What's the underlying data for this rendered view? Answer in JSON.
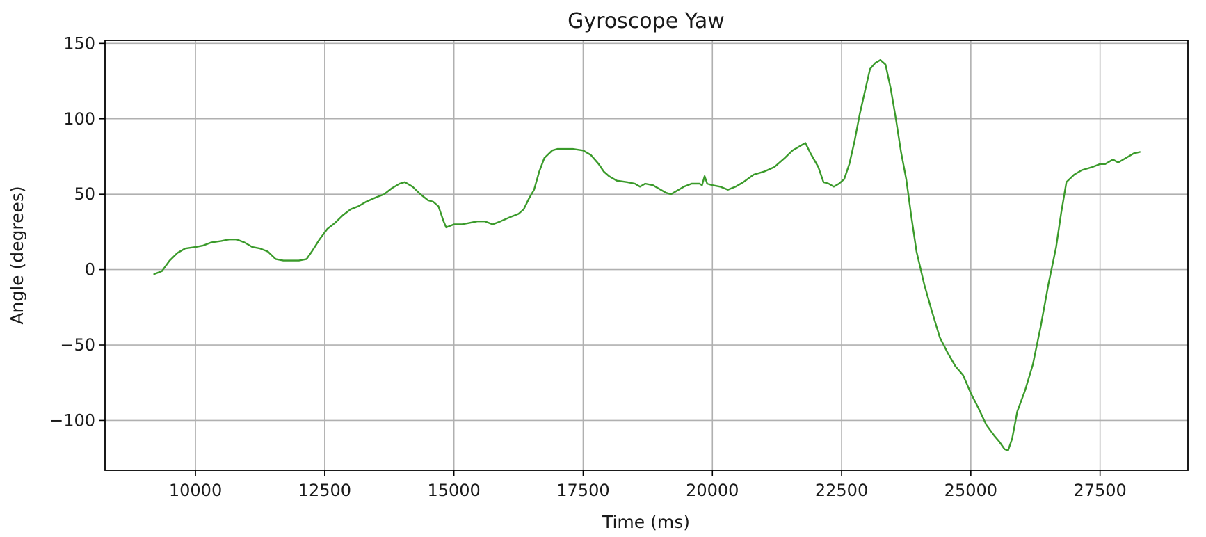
{
  "chart_data": {
    "type": "line",
    "title": "Gyroscope Yaw",
    "xlabel": "Time (ms)",
    "ylabel": "Angle (degrees)",
    "xlim": [
      8250,
      29200
    ],
    "ylim": [
      -133,
      152
    ],
    "x_ticks": [
      10000,
      12500,
      15000,
      17500,
      20000,
      22500,
      25000,
      27500
    ],
    "x_tick_labels": [
      "10000",
      "12500",
      "15000",
      "17500",
      "20000",
      "22500",
      "25000",
      "27500"
    ],
    "y_ticks": [
      150,
      100,
      50,
      0,
      -50,
      -100
    ],
    "y_tick_labels": [
      "150",
      "100",
      "50",
      "0",
      "−50",
      "−100"
    ],
    "grid": true,
    "line_color": "#3a9a2a",
    "series": [
      {
        "x": [
          9200,
          9350,
          9500,
          9650,
          9800,
          10000,
          10150,
          10300,
          10500,
          10650,
          10800,
          10950,
          11100,
          11250,
          11400,
          11550,
          11700,
          11850,
          12000,
          12150,
          12250,
          12400,
          12550,
          12700,
          12850,
          13000,
          13150,
          13300,
          13500,
          13650,
          13800,
          13950,
          14050,
          14200,
          14350,
          14500,
          14600,
          14700,
          14800,
          14850,
          15000,
          15150,
          15300,
          15450,
          15600,
          15750,
          15900,
          16100,
          16250,
          16350,
          16450,
          16550,
          16650,
          16750,
          16900,
          17000,
          17150,
          17300,
          17500,
          17650,
          17800,
          17900,
          18000,
          18150,
          18350,
          18500,
          18600,
          18700,
          18850,
          19000,
          19100,
          19200,
          19300,
          19450,
          19600,
          19750,
          19800,
          19850,
          19900,
          20000,
          20150,
          20300,
          20450,
          20600,
          20800,
          21000,
          21200,
          21400,
          21550,
          21700,
          21800,
          21900,
          22050,
          22150,
          22250,
          22350,
          22450,
          22550,
          22650,
          22750,
          22850,
          22950,
          23050,
          23150,
          23250,
          23350,
          23450,
          23550,
          23650,
          23750,
          23850,
          23950,
          24100,
          24250,
          24400,
          24550,
          24700,
          24850,
          25000,
          25150,
          25300,
          25450,
          25550,
          25650,
          25720,
          25800,
          25900,
          26050,
          26200,
          26350,
          26500,
          26650,
          26750,
          26850,
          27000,
          27150,
          27350,
          27500,
          27600,
          27750,
          27850,
          28000,
          28150,
          28270
        ],
        "y": [
          -3,
          -1,
          6,
          11,
          14,
          15,
          16,
          18,
          19,
          20,
          20,
          18,
          15,
          14,
          12,
          7,
          6,
          6,
          6,
          7,
          12,
          20,
          27,
          31,
          36,
          40,
          42,
          45,
          48,
          50,
          54,
          57,
          58,
          55,
          50,
          46,
          45,
          42,
          32,
          28,
          30,
          30,
          31,
          32,
          32,
          30,
          32,
          35,
          37,
          40,
          47,
          53,
          65,
          74,
          79,
          80,
          80,
          80,
          79,
          76,
          70,
          65,
          62,
          59,
          58,
          57,
          55,
          57,
          56,
          53,
          51,
          50,
          52,
          55,
          57,
          57,
          56,
          62,
          57,
          56,
          55,
          53,
          55,
          58,
          63,
          65,
          68,
          74,
          79,
          82,
          84,
          77,
          68,
          58,
          57,
          55,
          57,
          60,
          70,
          85,
          103,
          118,
          133,
          137,
          139,
          136,
          120,
          100,
          78,
          60,
          35,
          12,
          -10,
          -28,
          -45,
          -55,
          -64,
          -70,
          -82,
          -92,
          -103,
          -110,
          -114,
          -119,
          -120,
          -112,
          -94,
          -80,
          -63,
          -38,
          -10,
          15,
          38,
          58,
          63,
          66,
          68,
          70,
          70,
          73,
          71,
          74,
          77,
          78
        ]
      }
    ]
  }
}
